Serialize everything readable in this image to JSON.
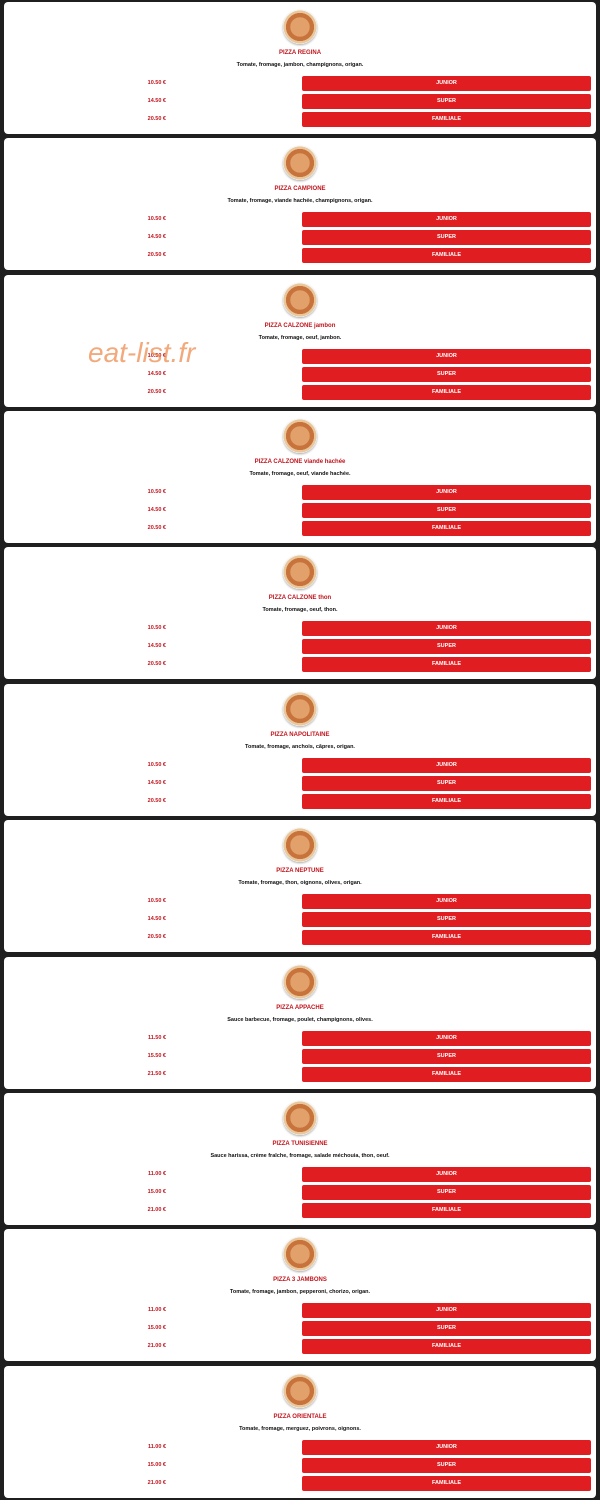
{
  "watermark": "eat-list.fr",
  "items": [
    {
      "name": "PIZZA REGINA",
      "description": "Tomate, fromage, jambon, champignons, origan.",
      "options": [
        {
          "price": "10.50 €",
          "size": "JUNIOR"
        },
        {
          "price": "14.50 €",
          "size": "SUPER"
        },
        {
          "price": "20.50 €",
          "size": "FAMILIALE"
        }
      ]
    },
    {
      "name": "PIZZA CAMPIONE",
      "description": "Tomate, fromage, viande hachée, champignons, origan.",
      "options": [
        {
          "price": "10.50 €",
          "size": "JUNIOR"
        },
        {
          "price": "14.50 €",
          "size": "SUPER"
        },
        {
          "price": "20.50 €",
          "size": "FAMILIALE"
        }
      ]
    },
    {
      "name": "PIZZA CALZONE jambon",
      "description": "Tomate, fromage, oeuf, jambon.",
      "options": [
        {
          "price": "10.50 €",
          "size": "JUNIOR"
        },
        {
          "price": "14.50 €",
          "size": "SUPER"
        },
        {
          "price": "20.50 €",
          "size": "FAMILIALE"
        }
      ]
    },
    {
      "name": "PIZZA CALZONE viande hachée",
      "description": "Tomate, fromage, oeuf, viande hachée.",
      "options": [
        {
          "price": "10.50 €",
          "size": "JUNIOR"
        },
        {
          "price": "14.50 €",
          "size": "SUPER"
        },
        {
          "price": "20.50 €",
          "size": "FAMILIALE"
        }
      ]
    },
    {
      "name": "PIZZA CALZONE thon",
      "description": "Tomate, fromage, oeuf, thon.",
      "options": [
        {
          "price": "10.50 €",
          "size": "JUNIOR"
        },
        {
          "price": "14.50 €",
          "size": "SUPER"
        },
        {
          "price": "20.50 €",
          "size": "FAMILIALE"
        }
      ]
    },
    {
      "name": "PIZZA NAPOLITAINE",
      "description": "Tomate, fromage, anchois, câpres, origan.",
      "options": [
        {
          "price": "10.50 €",
          "size": "JUNIOR"
        },
        {
          "price": "14.50 €",
          "size": "SUPER"
        },
        {
          "price": "20.50 €",
          "size": "FAMILIALE"
        }
      ]
    },
    {
      "name": "PIZZA NEPTUNE",
      "description": "Tomate, fromage, thon, oignons, olives, origan.",
      "options": [
        {
          "price": "10.50 €",
          "size": "JUNIOR"
        },
        {
          "price": "14.50 €",
          "size": "SUPER"
        },
        {
          "price": "20.50 €",
          "size": "FAMILIALE"
        }
      ]
    },
    {
      "name": "PIZZA APPACHE",
      "description": "Sauce barbecue, fromage, poulet, champignons, olives.",
      "options": [
        {
          "price": "11.50 €",
          "size": "JUNIOR"
        },
        {
          "price": "15.50 €",
          "size": "SUPER"
        },
        {
          "price": "21.50 €",
          "size": "FAMILIALE"
        }
      ]
    },
    {
      "name": "PIZZA TUNISIENNE",
      "description": "Sauce harissa, crème fraîche, fromage, salade méchouia, thon, oeuf.",
      "options": [
        {
          "price": "11.00 €",
          "size": "JUNIOR"
        },
        {
          "price": "15.00 €",
          "size": "SUPER"
        },
        {
          "price": "21.00 €",
          "size": "FAMILIALE"
        }
      ]
    },
    {
      "name": "PIZZA 3 JAMBONS",
      "description": "Tomate, fromage, jambon, pepperoni, chorizo, origan.",
      "options": [
        {
          "price": "11.00 €",
          "size": "JUNIOR"
        },
        {
          "price": "15.00 €",
          "size": "SUPER"
        },
        {
          "price": "21.00 €",
          "size": "FAMILIALE"
        }
      ]
    },
    {
      "name": "PIZZA ORIENTALE",
      "description": "Tomate, fromage, merguez, poivrons, oignons.",
      "options": [
        {
          "price": "11.00 €",
          "size": "JUNIOR"
        },
        {
          "price": "15.00 €",
          "size": "SUPER"
        },
        {
          "price": "21.00 €",
          "size": "FAMILIALE"
        }
      ]
    }
  ]
}
